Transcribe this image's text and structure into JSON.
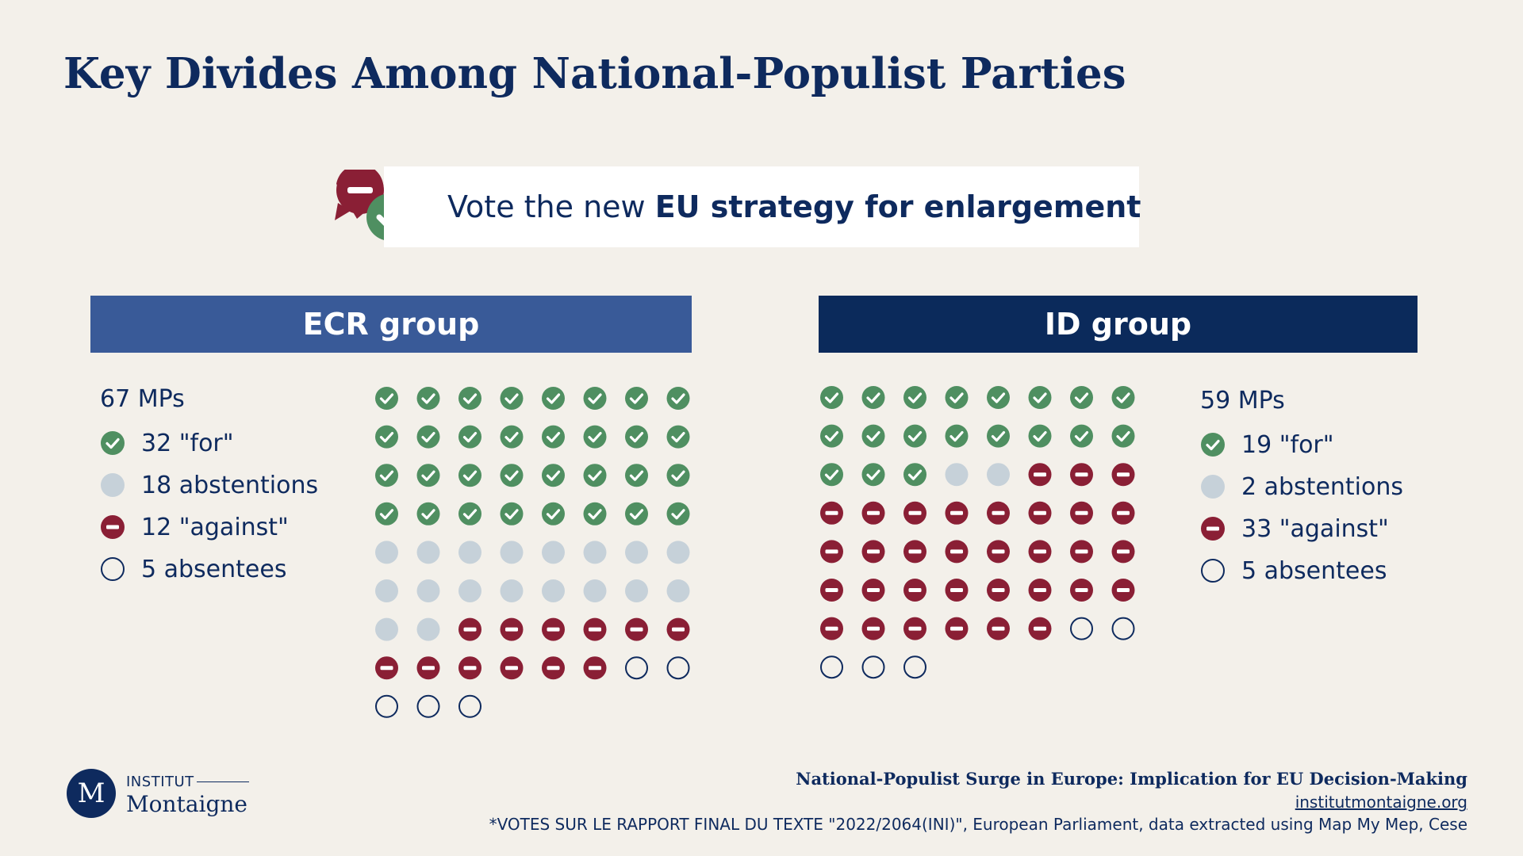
{
  "page": {
    "title": "Key Divides Among National-Populist Parties"
  },
  "subject": {
    "prefix": "Vote the new ",
    "bold": "EU strategy for enlargement",
    "icon": "vote-for-against-speech-bubbles-icon"
  },
  "colors": {
    "background": "#f3f0ea",
    "title": "#0e2a5e",
    "for": "#4f8f61",
    "abstention": "#c6d1d9",
    "against": "#8a1f35",
    "absentee_outline": "#0e2a5e",
    "ecr_header": "#395a98",
    "id_header": "#0b2a5b"
  },
  "groups": [
    {
      "name": "ECR group",
      "mps_label": "67 MPs",
      "legend": [
        {
          "kind": "for",
          "label": "32 \"for\""
        },
        {
          "kind": "abstention",
          "label": "18 abstentions"
        },
        {
          "kind": "against",
          "label": "12 \"against\""
        },
        {
          "kind": "absent",
          "label": "5 absentees"
        }
      ]
    },
    {
      "name": "ID group",
      "mps_label": "59 MPs",
      "legend": [
        {
          "kind": "for",
          "label": "19 \"for\""
        },
        {
          "kind": "abstention",
          "label": "2 abstentions"
        },
        {
          "kind": "against",
          "label": "33 \"against\""
        },
        {
          "kind": "absent",
          "label": "5 absentees"
        }
      ]
    }
  ],
  "chart_data": [
    {
      "type": "waffle",
      "title": "ECR group",
      "total": 67,
      "columns": 8,
      "categories": [
        "for",
        "abstentions",
        "against",
        "absentees"
      ],
      "values": [
        32,
        18,
        12,
        5
      ]
    },
    {
      "type": "waffle",
      "title": "ID group",
      "total": 59,
      "columns": 8,
      "categories": [
        "for",
        "abstentions",
        "against",
        "absentees"
      ],
      "values": [
        19,
        2,
        33,
        5
      ]
    }
  ],
  "logo": {
    "mark": "M",
    "top": "INSTITUT",
    "bottom": "Montaigne"
  },
  "footer": {
    "report": "National-Populist Surge in Europe: Implication for EU Decision-Making",
    "site": "institutmontaigne.org",
    "source": "*VOTES SUR LE RAPPORT FINAL DU TEXTE \"2022/2064(INI)\", European Parliament, data extracted using Map My Mep, Cese"
  }
}
